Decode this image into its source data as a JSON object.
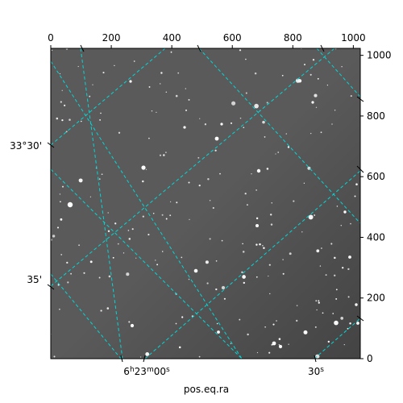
{
  "figure": {
    "pixel_axes": {
      "x_ticks": [
        "0",
        "200",
        "400",
        "600",
        "800",
        "1000"
      ],
      "y_ticks": [
        "0",
        "200",
        "400",
        "600",
        "800",
        "1000"
      ],
      "x_range": [
        0,
        1023
      ],
      "y_range": [
        0,
        1023
      ]
    },
    "world_axes": {
      "ra_ticks": [
        "6h23m00s",
        "30s"
      ],
      "dec_ticks": [
        "33°30'",
        "35'"
      ],
      "xlabel": "pos.eq.ra"
    },
    "image": {
      "colormap": "gray",
      "background": "#5a5a5a"
    },
    "grid": {
      "color": "#00d7d7",
      "style": "dashed"
    }
  }
}
